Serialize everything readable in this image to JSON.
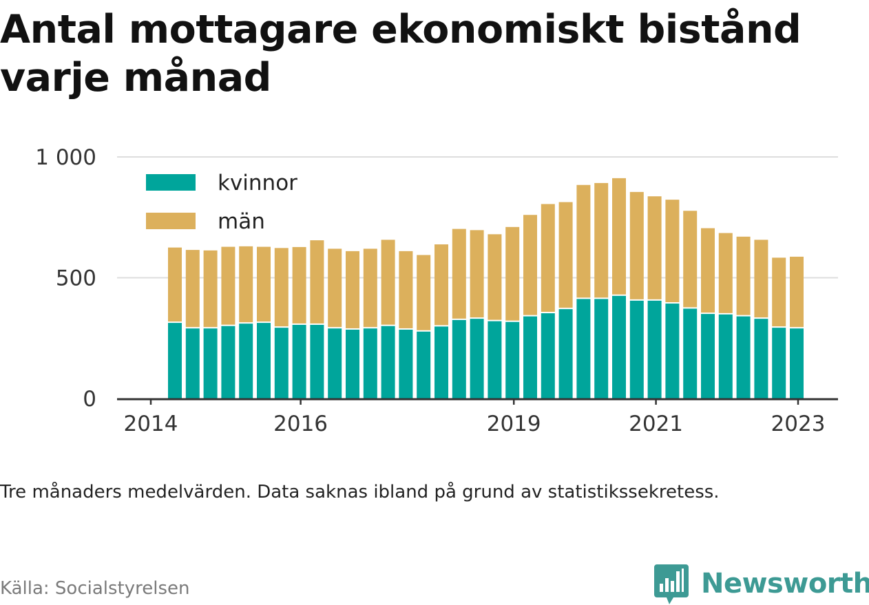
{
  "title": "Antal mottagare ekonomiskt bistånd varje månad",
  "note": "Tre månaders medelvärden. Data saknas ibland på grund av statistikssekretess.",
  "source": "Källa: Socialstyrelsen",
  "brand": {
    "name": "Newsworthy",
    "icon": "bar-chart-speech-bubble-icon",
    "color": "#3d9a94"
  },
  "colors": {
    "kvinnor": "#00a59b",
    "man": "#dcb05c",
    "grid": "#dddddd",
    "axis": "#333333"
  },
  "chart_data": {
    "type": "bar",
    "stacked": true,
    "legend_position": "top-left",
    "grid": true,
    "ylim": [
      0,
      1000
    ],
    "y_ticks": [
      {
        "value": 0,
        "label": "0"
      },
      {
        "value": 500,
        "label": "500"
      },
      {
        "value": 1000,
        "label": "1 000"
      }
    ],
    "x_ticks": [
      {
        "index": 0,
        "label": "2014"
      },
      {
        "index": 8,
        "label": "2016"
      },
      {
        "index": 20,
        "label": "2019"
      },
      {
        "index": 28,
        "label": "2021"
      },
      {
        "index": 36,
        "label": "2023"
      }
    ],
    "series": [
      {
        "name": "kvinnor",
        "values": [
          313,
          290,
          290,
          300,
          310,
          313,
          293,
          305,
          305,
          290,
          285,
          290,
          300,
          285,
          277,
          298,
          325,
          330,
          320,
          317,
          340,
          353,
          370,
          412,
          412,
          425,
          405,
          405,
          393,
          372,
          350,
          348,
          340,
          330,
          293,
          290
        ]
      },
      {
        "name": "män",
        "values": [
          312,
          325,
          323,
          328,
          320,
          315,
          330,
          322,
          350,
          330,
          325,
          330,
          357,
          325,
          317,
          340,
          377,
          367,
          360,
          393,
          420,
          452,
          443,
          472,
          480,
          487,
          450,
          432,
          430,
          405,
          355,
          337,
          330,
          327,
          290,
          297
        ]
      }
    ]
  }
}
